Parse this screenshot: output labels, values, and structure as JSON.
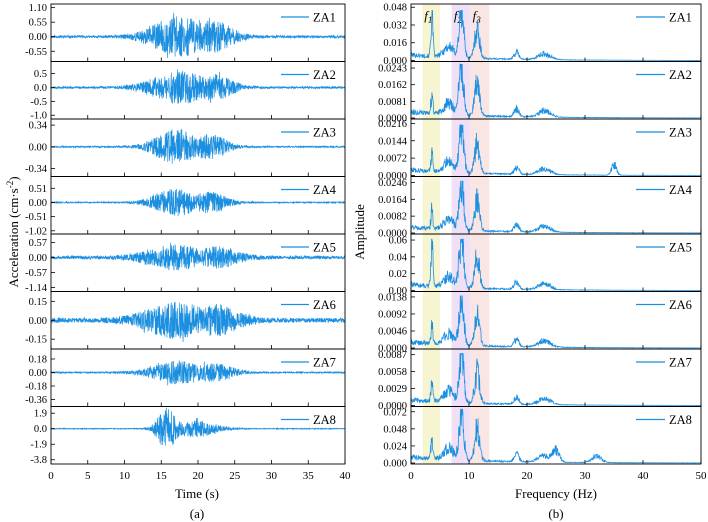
{
  "figure": {
    "caption_a": "(a)",
    "caption_b": "(b)"
  },
  "colors": {
    "signal": "#1c8fe0",
    "spectrum": "#1c8fe0",
    "band_f1": "#f6f3c9",
    "band_f2": "#ecdaf5",
    "band_f3": "#f9e0e0",
    "frame": "#000000"
  },
  "chart_data": [
    {
      "type": "line",
      "panel": "a",
      "title": "",
      "xlabel": "Time (s)",
      "ylabel_text": "Acceleration (cm·s",
      "ylabel_sup": "-2",
      "ylabel_close": ")",
      "xlim": [
        0,
        40
      ],
      "xticks": [
        "0",
        "5",
        "10",
        "15",
        "20",
        "25",
        "30",
        "35",
        "40"
      ],
      "series": [
        {
          "name": "ZA1",
          "ylim": [
            -0.9,
            1.2
          ],
          "ticks": [
            "1.10",
            "0.55",
            "0.00",
            "-0.55"
          ],
          "tick_values": [
            1.1,
            0.55,
            0.0,
            -0.55
          ],
          "peak": 0.78,
          "seed": 11,
          "shape": "a"
        },
        {
          "name": "ZA2",
          "ylim": [
            -1.1,
            0.9
          ],
          "ticks": [
            "0.5",
            "0.0",
            "-0.5",
            "-1.0"
          ],
          "tick_values": [
            0.5,
            0.0,
            -0.5,
            -1.0
          ],
          "peak": 0.62,
          "seed": 23,
          "shape": "a"
        },
        {
          "name": "ZA3",
          "ylim": [
            -0.45,
            0.42
          ],
          "ticks": [
            "0.34",
            "0.00",
            "-0.34"
          ],
          "tick_values": [
            0.34,
            0.0,
            -0.34
          ],
          "peak": 0.28,
          "seed": 37,
          "shape": "b"
        },
        {
          "name": "ZA4",
          "ylim": [
            -1.1,
            0.9
          ],
          "ticks": [
            "0.51",
            "0.00",
            "-0.51",
            "-1.02"
          ],
          "tick_values": [
            0.51,
            0.0,
            -0.51,
            -1.02
          ],
          "peak": 0.52,
          "seed": 41,
          "shape": "b"
        },
        {
          "name": "ZA5",
          "ylim": [
            -1.25,
            0.85
          ],
          "ticks": [
            "0.57",
            "0.00",
            "-0.57",
            "-1.14"
          ],
          "tick_values": [
            0.57,
            0.0,
            -0.57,
            -1.14
          ],
          "peak": 0.5,
          "seed": 53,
          "shape": "c"
        },
        {
          "name": "ZA6",
          "ylim": [
            -0.22,
            0.22
          ],
          "ticks": [
            "0.15",
            "0.00",
            "-0.15"
          ],
          "tick_values": [
            0.15,
            0.0,
            -0.15
          ],
          "peak": 0.15,
          "seed": 67,
          "shape": "c"
        },
        {
          "name": "ZA7",
          "ylim": [
            -0.44,
            0.3
          ],
          "ticks": [
            "0.18",
            "0.00",
            "-0.18",
            "-0.36"
          ],
          "tick_values": [
            0.18,
            0.0,
            -0.18,
            -0.36
          ],
          "peak": 0.16,
          "seed": 71,
          "shape": "a"
        },
        {
          "name": "ZA8",
          "ylim": [
            -4.2,
            2.6
          ],
          "ticks": [
            "1.9",
            "0.0",
            "-1.9",
            "-3.8"
          ],
          "tick_values": [
            1.9,
            0.0,
            -1.9,
            -3.8
          ],
          "peak": 2.6,
          "seed": 83,
          "shape": "d"
        }
      ]
    },
    {
      "type": "line",
      "panel": "b",
      "title": "",
      "xlabel": "Frequency (Hz)",
      "ylabel": "Amplitude",
      "xlim": [
        0,
        50
      ],
      "xticks": [
        "0",
        "10",
        "20",
        "30",
        "40",
        "50"
      ],
      "bands": [
        {
          "label": "f",
          "sub": "1",
          "range": [
            2.0,
            5.0
          ]
        },
        {
          "label": "f",
          "sub": "2",
          "range": [
            7.0,
            10.2
          ]
        },
        {
          "label": "f",
          "sub": "3",
          "range": [
            10.2,
            13.5
          ]
        }
      ],
      "series": [
        {
          "name": "ZA1",
          "ylim": [
            0,
            0.05
          ],
          "ticks": [
            "0.048",
            "0.032",
            "0.016",
            "0.000"
          ],
          "tick_values": [
            0.048,
            0.032,
            0.016,
            0.0
          ],
          "peak": 0.043,
          "seed": 101
        },
        {
          "name": "ZA2",
          "ylim": [
            0,
            0.027
          ],
          "ticks": [
            "0.0243",
            "0.0162",
            "0.0081",
            "0.0000"
          ],
          "tick_values": [
            0.0243,
            0.0162,
            0.0081,
            0.0
          ],
          "peak": 0.025,
          "seed": 113
        },
        {
          "name": "ZA3",
          "ylim": [
            0,
            0.023
          ],
          "ticks": [
            "0.0216",
            "0.0144",
            "0.0072",
            "0.0000"
          ],
          "tick_values": [
            0.0216,
            0.0144,
            0.0072,
            0.0
          ],
          "peak": 0.02,
          "seed": 127
        },
        {
          "name": "ZA4",
          "ylim": [
            0,
            0.027
          ],
          "ticks": [
            "0.0246",
            "0.0164",
            "0.0082",
            "0.0000"
          ],
          "tick_values": [
            0.0246,
            0.0164,
            0.0082,
            0.0
          ],
          "peak": 0.024,
          "seed": 131
        },
        {
          "name": "ZA5",
          "ylim": [
            0,
            0.066
          ],
          "ticks": [
            "0.06",
            "0.04",
            "0.02",
            "0.00"
          ],
          "tick_values": [
            0.06,
            0.04,
            0.02,
            0.0
          ],
          "peak": 0.058,
          "seed": 139
        },
        {
          "name": "ZA6",
          "ylim": [
            0,
            0.015
          ],
          "ticks": [
            "0.0138",
            "0.0092",
            "0.0046",
            "0.0000"
          ],
          "tick_values": [
            0.0138,
            0.0092,
            0.0046,
            0.0
          ],
          "peak": 0.0135,
          "seed": 149
        },
        {
          "name": "ZA7",
          "ylim": [
            0,
            0.0095
          ],
          "ticks": [
            "0.0087",
            "0.0058",
            "0.0029",
            "0.0000"
          ],
          "tick_values": [
            0.0087,
            0.0058,
            0.0029,
            0.0
          ],
          "peak": 0.0085,
          "seed": 157
        },
        {
          "name": "ZA8",
          "ylim": [
            0,
            0.078
          ],
          "ticks": [
            "0.072",
            "0.048",
            "0.024",
            "0.000"
          ],
          "tick_values": [
            0.072,
            0.048,
            0.024,
            0.0
          ],
          "peak": 0.072,
          "seed": 163
        }
      ]
    }
  ]
}
